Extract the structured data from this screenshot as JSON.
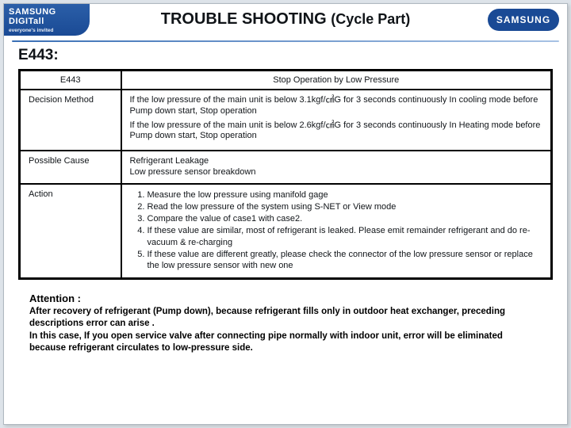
{
  "header": {
    "logo_left_line1": "SAMSUNG DIGITall",
    "logo_left_line2": "everyone's invited",
    "logo_right": "SAMSUNG",
    "title_main": "TROUBLE SHOOTING",
    "title_sub": "(Cycle Part)"
  },
  "error": {
    "code_label": "E443:",
    "head_code": "E443",
    "head_desc": "Stop Operation by Low Pressure",
    "rows": {
      "decision": {
        "label": "Decision Method",
        "p1": "If the low pressure of the main unit is below 3.1kgf/㎠G for 3 seconds continuously In cooling mode before Pump down start, Stop operation",
        "p2": "If the low pressure of the main unit is below 2.6kgf/㎠G for 3 seconds continuously In Heating mode before Pump down start, Stop operation"
      },
      "cause": {
        "label": "Possible Cause",
        "p1": "Refrigerant Leakage",
        "p2": "Low pressure sensor breakdown"
      },
      "action": {
        "label": "Action",
        "items": [
          "Measure the low pressure using manifold gage",
          "Read the low pressure of the system using S-NET or View mode",
          "Compare the value of case1 with case2.",
          "If these value are similar, most of refrigerant is leaked. Please emit remainder refrigerant and do re-vacuum & re-charging",
          "If these value are different greatly, please check the connector of the low pressure sensor or replace the low pressure sensor with new one"
        ]
      }
    }
  },
  "attention": {
    "heading": "Attention :",
    "body": "After recovery of refrigerant (Pump down), because refrigerant fills only in outdoor heat exchanger, preceding descriptions error can arise .\nIn this case, If you open service valve after connecting pipe normally with indoor unit, error will be eliminated because refrigerant circulates to low-pressure side."
  }
}
